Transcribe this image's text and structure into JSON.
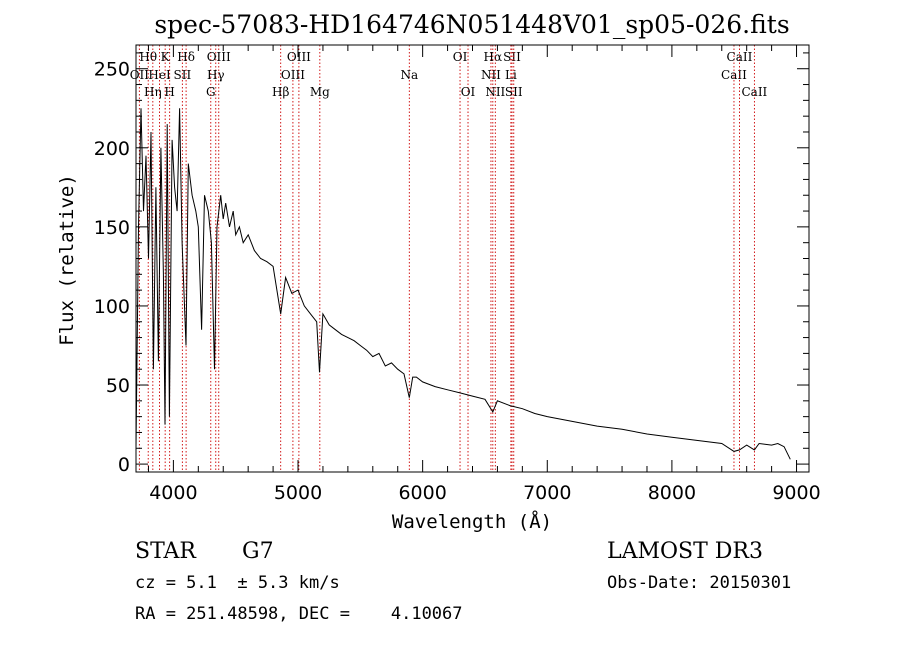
{
  "chart_data": {
    "type": "line",
    "title": "spec-57083-HD164746N051448V01_sp05-026.fits",
    "xlabel": "Wavelength (Å)",
    "ylabel": "Flux (relative)",
    "xlim": [
      3700,
      9100
    ],
    "ylim": [
      -5,
      265
    ],
    "x_ticks": [
      "4000",
      "5000",
      "6000",
      "7000",
      "8000",
      "9000"
    ],
    "y_ticks": [
      "0",
      "50",
      "100",
      "150",
      "200",
      "250"
    ],
    "series": [
      {
        "name": "flux",
        "x": [
          3700,
          3720,
          3740,
          3760,
          3780,
          3800,
          3820,
          3840,
          3860,
          3880,
          3900,
          3920,
          3933,
          3950,
          3968,
          3990,
          4010,
          4030,
          4050,
          4070,
          4101,
          4120,
          4150,
          4180,
          4200,
          4226,
          4250,
          4280,
          4305,
          4330,
          4350,
          4380,
          4400,
          4420,
          4450,
          4480,
          4500,
          4530,
          4560,
          4600,
          4650,
          4700,
          4750,
          4800,
          4861,
          4900,
          4950,
          5000,
          5050,
          5100,
          5150,
          5172,
          5200,
          5250,
          5300,
          5350,
          5400,
          5450,
          5500,
          5550,
          5600,
          5650,
          5700,
          5750,
          5800,
          5850,
          5893,
          5920,
          5950,
          6000,
          6100,
          6200,
          6300,
          6400,
          6500,
          6563,
          6600,
          6700,
          6800,
          6900,
          7000,
          7200,
          7400,
          7600,
          7800,
          8000,
          8200,
          8400,
          8498,
          8542,
          8600,
          8662,
          8700,
          8800,
          8850,
          8900,
          8950
        ],
        "values": [
          10,
          150,
          225,
          160,
          195,
          130,
          210,
          60,
          175,
          65,
          200,
          120,
          25,
          215,
          30,
          205,
          175,
          160,
          225,
          140,
          75,
          190,
          170,
          160,
          150,
          85,
          170,
          160,
          140,
          60,
          150,
          170,
          155,
          165,
          150,
          160,
          145,
          150,
          140,
          145,
          135,
          130,
          128,
          125,
          95,
          118,
          108,
          110,
          100,
          95,
          90,
          58,
          95,
          88,
          85,
          82,
          80,
          78,
          75,
          72,
          68,
          70,
          62,
          64,
          60,
          57,
          42,
          55,
          55,
          52,
          49,
          47,
          45,
          43,
          41,
          33,
          40,
          37,
          35,
          32,
          30,
          27,
          24,
          22,
          19,
          17,
          15,
          13,
          8,
          9,
          12,
          9,
          13,
          12,
          13,
          11,
          3
        ]
      }
    ],
    "line_markers": [
      {
        "wavelength": 3727,
        "label": "OII",
        "row": 2
      },
      {
        "wavelength": 3798,
        "label": "Hθ",
        "row": 1
      },
      {
        "wavelength": 3835,
        "label": "Hη",
        "row": 3
      },
      {
        "wavelength": 3889,
        "label": "HeI",
        "row": 2
      },
      {
        "wavelength": 3934,
        "label": "K",
        "row": 1
      },
      {
        "wavelength": 3970,
        "label": "H",
        "row": 3
      },
      {
        "wavelength": 4072,
        "label": "SII",
        "row": 2
      },
      {
        "wavelength": 4102,
        "label": "Hδ",
        "row": 1
      },
      {
        "wavelength": 4300,
        "label": "G",
        "row": 3
      },
      {
        "wavelength": 4340,
        "label": "Hγ",
        "row": 2
      },
      {
        "wavelength": 4364,
        "label": "OIII",
        "row": 1
      },
      {
        "wavelength": 4861,
        "label": "Hβ",
        "row": 3
      },
      {
        "wavelength": 4959,
        "label": "OIII",
        "row": 2
      },
      {
        "wavelength": 5007,
        "label": "OIII",
        "row": 1
      },
      {
        "wavelength": 5175,
        "label": "Mg",
        "row": 3
      },
      {
        "wavelength": 5893,
        "label": "Na",
        "row": 2
      },
      {
        "wavelength": 6300,
        "label": "OI",
        "row": 1
      },
      {
        "wavelength": 6364,
        "label": "OI",
        "row": 3
      },
      {
        "wavelength": 6548,
        "label": "NII",
        "row": 2
      },
      {
        "wavelength": 6563,
        "label": "Hα",
        "row": 1
      },
      {
        "wavelength": 6583,
        "label": "NII",
        "row": 3
      },
      {
        "wavelength": 6708,
        "label": "Li",
        "row": 2
      },
      {
        "wavelength": 6717,
        "label": "SII",
        "row": 1
      },
      {
        "wavelength": 6731,
        "label": "SII",
        "row": 3
      },
      {
        "wavelength": 8498,
        "label": "CaII",
        "row": 2
      },
      {
        "wavelength": 8542,
        "label": "CaII",
        "row": 1
      },
      {
        "wavelength": 8662,
        "label": "CaII",
        "row": 3
      }
    ],
    "line_marker_color": "#cc0000"
  },
  "info": {
    "object_class": "STAR",
    "subclass": "G7",
    "survey": "LAMOST DR3",
    "cz": "cz = 5.1  ± 5.3 km/s",
    "obs_date": "Obs-Date: 20150301",
    "coords": "RA = 251.48598, DEC =    4.10067"
  }
}
